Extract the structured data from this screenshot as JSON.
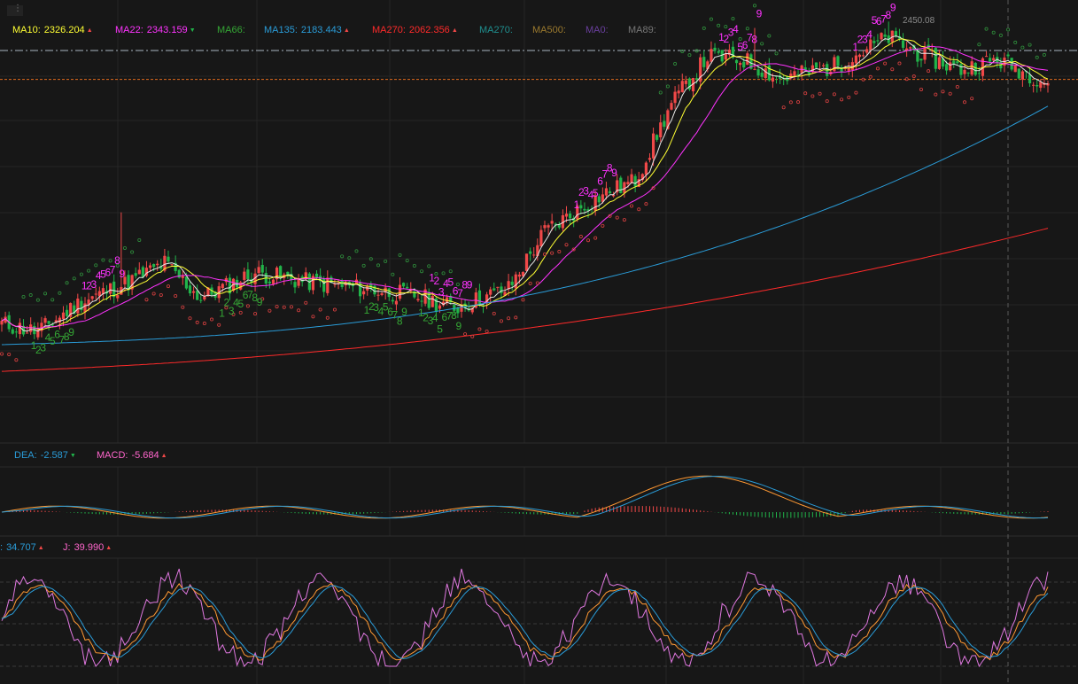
{
  "chart_data": {
    "type": "candlestick",
    "main_legend": [
      {
        "name": "MA10",
        "value": "2326.204",
        "dir": "up",
        "color": "#ffff33"
      },
      {
        "name": "MA22",
        "value": "2343.159",
        "dir": "down",
        "color": "#ff33ff"
      },
      {
        "name": "MA66",
        "value": "",
        "dir": "",
        "color": "#35a735"
      },
      {
        "name": "MA135",
        "value": "2183.443",
        "dir": "up",
        "color": "#2a9cd8"
      },
      {
        "name": "MA270",
        "value": "2062.356",
        "dir": "up",
        "color": "#ff2a2a"
      },
      {
        "name": "MA270",
        "value": "",
        "dir": "",
        "color": "#1f8f8f"
      },
      {
        "name": "MA500",
        "value": "",
        "dir": "",
        "color": "#9b7a2e"
      },
      {
        "name": "MA0",
        "value": "",
        "dir": "",
        "color": "#6a3f9e"
      },
      {
        "name": "MA89",
        "value": "",
        "dir": "",
        "color": "#777777"
      }
    ],
    "high_label": "2450.08",
    "price_axis": {
      "min": 1850,
      "max": 2470
    },
    "reference_price": 2359,
    "series_counters": {
      "red": "#ff33ff",
      "green": "#35a735"
    },
    "macd_legend": [
      {
        "name": "DEA",
        "value": "-2.587",
        "dir": "down",
        "color": "#2a9cd8"
      },
      {
        "name": "MACD",
        "value": "-5.684",
        "dir": "up",
        "color": "#ff66cc"
      }
    ],
    "kdj_legend": [
      {
        "name": "",
        "value": "34.707",
        "dir": "up",
        "color": "#2a9cd8"
      },
      {
        "name": "J",
        "value": "39.990",
        "dir": "up",
        "color": "#ff66cc"
      }
    ],
    "colors": {
      "background": "#171717",
      "up": "#f04848",
      "down": "#21b44a",
      "ma10": "#ffff33",
      "ma22": "#ff33ff",
      "ma66": "#e8e8e8",
      "ma135": "#2a9cd8",
      "ma270": "#ff2a2a",
      "sar_up": "#d84040",
      "sar_down": "#2f8f3c",
      "dif": "#ff9933",
      "dea": "#2a9cd8",
      "k": "#ff9933",
      "d": "#2a9cd8",
      "j": "#e078e0"
    }
  }
}
